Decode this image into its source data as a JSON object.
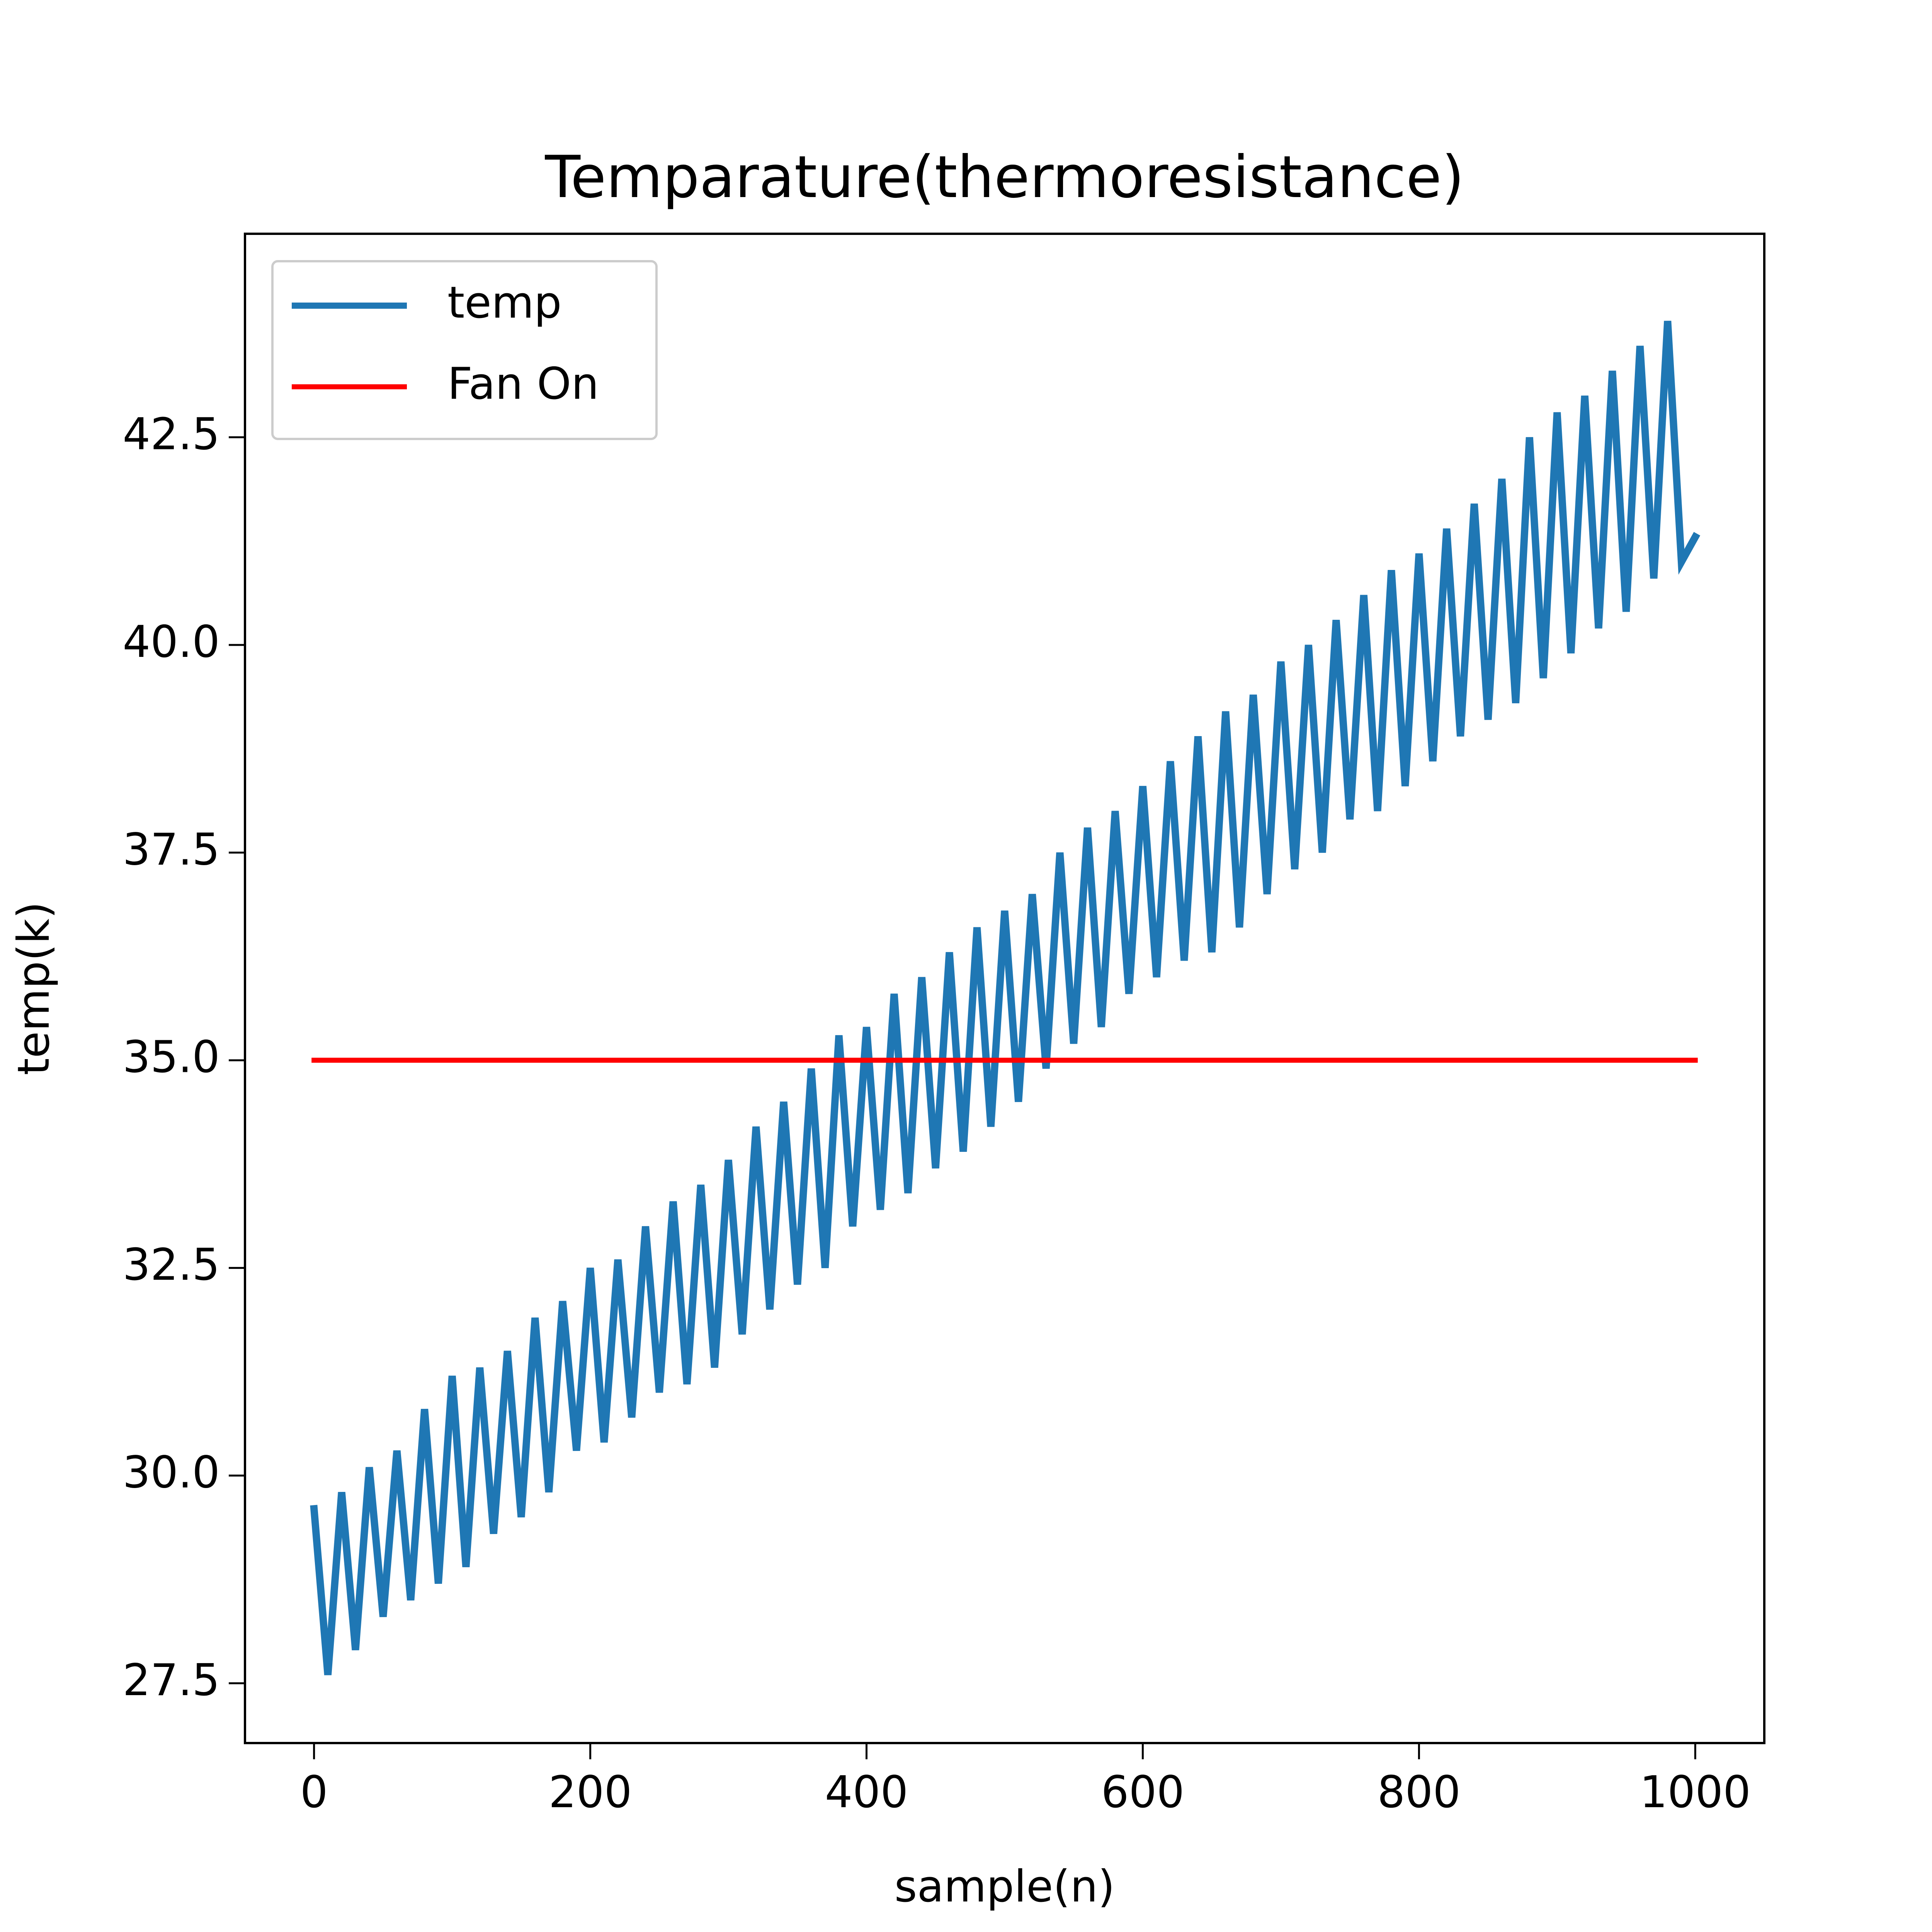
{
  "chart_data": {
    "type": "line",
    "title": "Temparature(thermoresistance)",
    "x_label": "sample(n)",
    "y_label": "temp(k)",
    "series": [
      {
        "name": "temp",
        "color": "#1f77b4",
        "x": [
          0,
          10,
          20,
          30,
          40,
          50,
          60,
          70,
          80,
          90,
          100,
          110,
          120,
          130,
          140,
          150,
          160,
          170,
          180,
          190,
          200,
          210,
          220,
          230,
          240,
          250,
          260,
          270,
          280,
          290,
          300,
          310,
          320,
          330,
          340,
          350,
          360,
          370,
          380,
          390,
          400,
          410,
          420,
          430,
          440,
          450,
          460,
          470,
          480,
          490,
          500,
          510,
          520,
          530,
          540,
          550,
          560,
          570,
          580,
          590,
          600,
          610,
          620,
          630,
          640,
          650,
          660,
          670,
          680,
          690,
          700,
          710,
          720,
          730,
          740,
          750,
          760,
          770,
          780,
          790,
          800,
          810,
          820,
          830,
          840,
          850,
          860,
          870,
          880,
          890,
          900,
          910,
          920,
          930,
          940,
          950,
          960,
          970,
          980,
          990,
          1000
        ],
        "values": [
          29.6,
          27.6,
          29.8,
          27.9,
          30.1,
          28.3,
          30.3,
          28.5,
          30.8,
          28.7,
          31.2,
          28.9,
          31.3,
          29.3,
          31.5,
          29.5,
          31.9,
          29.8,
          32.1,
          30.3,
          32.5,
          30.4,
          32.6,
          30.7,
          33.0,
          31.0,
          33.3,
          31.1,
          33.5,
          31.3,
          33.8,
          31.7,
          34.2,
          32.0,
          34.5,
          32.3,
          34.9,
          32.5,
          35.3,
          33.0,
          35.4,
          33.2,
          35.8,
          33.4,
          36.0,
          33.7,
          36.3,
          33.9,
          36.6,
          34.2,
          36.8,
          34.5,
          37.0,
          34.9,
          37.5,
          35.2,
          37.8,
          35.4,
          38.0,
          35.8,
          38.3,
          36.0,
          38.6,
          36.2,
          38.9,
          36.3,
          39.2,
          36.6,
          39.4,
          37.0,
          39.8,
          37.3,
          40.0,
          37.5,
          40.3,
          37.9,
          40.6,
          38.0,
          40.9,
          38.3,
          41.1,
          38.6,
          41.4,
          38.9,
          41.7,
          39.1,
          42.0,
          39.3,
          42.5,
          39.6,
          42.8,
          39.9,
          43.0,
          40.2,
          43.3,
          40.4,
          43.6,
          40.8,
          43.9,
          41.0,
          41.3
        ]
      },
      {
        "name": "Fan On",
        "color": "#ff0000",
        "x": [
          0,
          1000
        ],
        "values": [
          35,
          35
        ]
      }
    ],
    "xlim": [
      -50,
      1050
    ],
    "ylim": [
      26.78,
      44.95
    ],
    "xticks": [
      0,
      200,
      400,
      600,
      800,
      1000
    ],
    "yticks": [
      27.5,
      {
        "value": 30,
        "label": "30.0"
      },
      32.5,
      {
        "value": 35,
        "label": "35.0"
      },
      37.5,
      {
        "value": 40,
        "label": "40.0"
      },
      42.5
    ],
    "legend": "upper left"
  }
}
